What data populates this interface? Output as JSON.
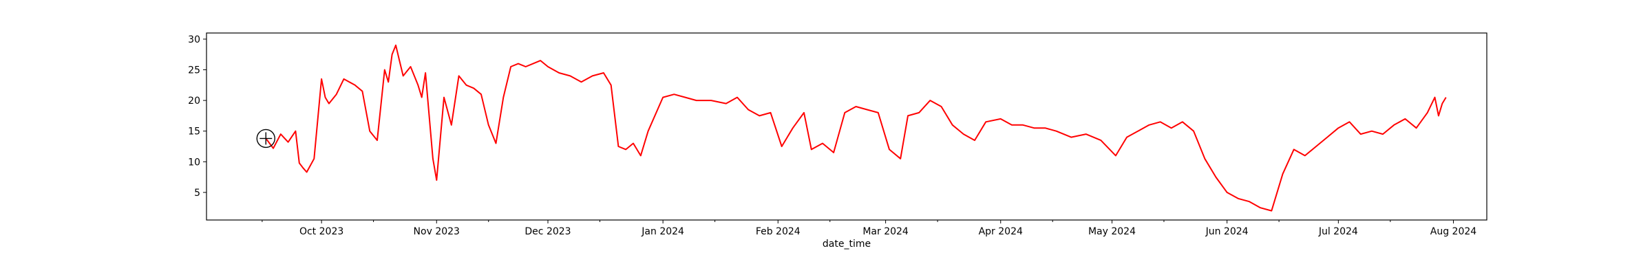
{
  "chart_data": {
    "type": "line",
    "title": "",
    "xlabel": "date_time",
    "ylabel": "",
    "xlim": [
      "2023-08-31",
      "2024-08-10"
    ],
    "ylim": [
      0.5,
      31
    ],
    "line_color": "#ff0000",
    "grid": false,
    "legend": "none",
    "x_tick_labels": [
      {
        "date": "2023-10-01",
        "label": "Oct 2023"
      },
      {
        "date": "2023-11-01",
        "label": "Nov 2023"
      },
      {
        "date": "2023-12-01",
        "label": "Dec 2023"
      },
      {
        "date": "2024-01-01",
        "label": "Jan 2024"
      },
      {
        "date": "2024-02-01",
        "label": "Feb 2024"
      },
      {
        "date": "2024-03-01",
        "label": "Mar 2024"
      },
      {
        "date": "2024-04-01",
        "label": "Apr 2024"
      },
      {
        "date": "2024-05-01",
        "label": "May 2024"
      },
      {
        "date": "2024-06-01",
        "label": "Jun 2024"
      },
      {
        "date": "2024-07-01",
        "label": "Jul 2024"
      },
      {
        "date": "2024-08-01",
        "label": "Aug 2024"
      }
    ],
    "x_minor_ticks": [
      "2023-09-15",
      "2023-10-15",
      "2023-11-15",
      "2023-12-15",
      "2024-01-15",
      "2024-02-15",
      "2024-03-15",
      "2024-04-15",
      "2024-05-15",
      "2024-06-15",
      "2024-07-15"
    ],
    "y_ticks": [
      5,
      10,
      15,
      20,
      25,
      30
    ],
    "marker": {
      "date": "2023-09-16",
      "value": 13.8,
      "shape": "circle-crosshair"
    },
    "series": [
      {
        "x": [
          "2023-09-16",
          "2023-09-18",
          "2023-09-20",
          "2023-09-22",
          "2023-09-24",
          "2023-09-25",
          "2023-09-26",
          "2023-09-27",
          "2023-09-29",
          "2023-10-01",
          "2023-10-02",
          "2023-10-03",
          "2023-10-05",
          "2023-10-07",
          "2023-10-10",
          "2023-10-12",
          "2023-10-14",
          "2023-10-16",
          "2023-10-18",
          "2023-10-19",
          "2023-10-20",
          "2023-10-21",
          "2023-10-22",
          "2023-10-23",
          "2023-10-25",
          "2023-10-27",
          "2023-10-28",
          "2023-10-29",
          "2023-10-31",
          "2023-11-01",
          "2023-11-03",
          "2023-11-05",
          "2023-11-07",
          "2023-11-09",
          "2023-11-11",
          "2023-11-13",
          "2023-11-15",
          "2023-11-17",
          "2023-11-19",
          "2023-11-21",
          "2023-11-23",
          "2023-11-25",
          "2023-11-27",
          "2023-11-29",
          "2023-12-01",
          "2023-12-04",
          "2023-12-07",
          "2023-12-10",
          "2023-12-13",
          "2023-12-16",
          "2023-12-18",
          "2023-12-20",
          "2023-12-22",
          "2023-12-24",
          "2023-12-26",
          "2023-12-28",
          "2024-01-01",
          "2024-01-04",
          "2024-01-07",
          "2024-01-10",
          "2024-01-14",
          "2024-01-18",
          "2024-01-21",
          "2024-01-24",
          "2024-01-27",
          "2024-01-30",
          "2024-02-02",
          "2024-02-05",
          "2024-02-08",
          "2024-02-10",
          "2024-02-13",
          "2024-02-16",
          "2024-02-19",
          "2024-02-22",
          "2024-02-25",
          "2024-02-28",
          "2024-03-02",
          "2024-03-05",
          "2024-03-07",
          "2024-03-10",
          "2024-03-13",
          "2024-03-16",
          "2024-03-19",
          "2024-03-22",
          "2024-03-25",
          "2024-03-28",
          "2024-04-01",
          "2024-04-04",
          "2024-04-07",
          "2024-04-10",
          "2024-04-13",
          "2024-04-16",
          "2024-04-20",
          "2024-04-24",
          "2024-04-28",
          "2024-05-02",
          "2024-05-05",
          "2024-05-08",
          "2024-05-11",
          "2024-05-14",
          "2024-05-17",
          "2024-05-20",
          "2024-05-23",
          "2024-05-26",
          "2024-05-29",
          "2024-06-01",
          "2024-06-04",
          "2024-06-07",
          "2024-06-10",
          "2024-06-13",
          "2024-06-16",
          "2024-06-19",
          "2024-06-22",
          "2024-06-25",
          "2024-06-28",
          "2024-07-01",
          "2024-07-04",
          "2024-07-07",
          "2024-07-10",
          "2024-07-13",
          "2024-07-16",
          "2024-07-19",
          "2024-07-22",
          "2024-07-25",
          "2024-07-27",
          "2024-07-28",
          "2024-07-29",
          "2024-07-30"
        ],
        "y": [
          13.8,
          12.2,
          14.5,
          13.2,
          15.0,
          9.8,
          9.0,
          8.3,
          10.5,
          23.5,
          20.5,
          19.5,
          21.0,
          23.5,
          22.5,
          21.5,
          15.0,
          13.5,
          25.0,
          23.0,
          27.5,
          29.0,
          26.5,
          24.0,
          25.5,
          22.5,
          20.5,
          24.5,
          10.5,
          7.0,
          20.5,
          16.0,
          24.0,
          22.5,
          22.0,
          21.0,
          16.0,
          13.0,
          20.5,
          25.5,
          26.0,
          25.5,
          26.0,
          26.5,
          25.5,
          24.5,
          24.0,
          23.0,
          24.0,
          24.5,
          22.5,
          12.5,
          12.0,
          13.0,
          11.0,
          15.0,
          20.5,
          21.0,
          20.5,
          20.0,
          20.0,
          19.5,
          20.5,
          18.5,
          17.5,
          18.0,
          12.5,
          15.5,
          18.0,
          12.0,
          13.0,
          11.5,
          18.0,
          19.0,
          18.5,
          18.0,
          12.0,
          10.5,
          17.5,
          18.0,
          20.0,
          19.0,
          16.0,
          14.5,
          13.5,
          16.5,
          17.0,
          16.0,
          16.0,
          15.5,
          15.5,
          15.0,
          14.0,
          14.5,
          13.5,
          11.0,
          14.0,
          15.0,
          16.0,
          16.5,
          15.5,
          16.5,
          15.0,
          10.5,
          7.5,
          5.0,
          4.0,
          3.5,
          2.5,
          2.0,
          8.0,
          12.0,
          11.0,
          12.5,
          14.0,
          15.5,
          16.5,
          14.5,
          15.0,
          14.5,
          16.0,
          17.0,
          15.5,
          18.0,
          20.5,
          17.5,
          19.5,
          20.5
        ]
      }
    ]
  }
}
